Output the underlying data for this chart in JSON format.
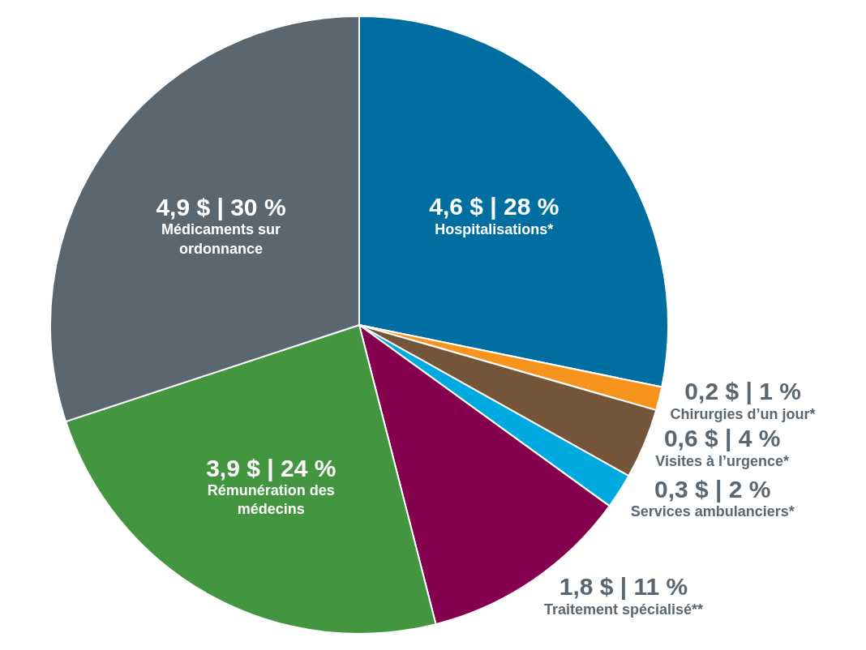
{
  "chart_data": {
    "type": "pie",
    "categories": [
      "Hospitalisations*",
      "Chirurgies d’un jour*",
      "Visites à l’urgence*",
      "Services ambulanciers*",
      "Traitement spécialisé**",
      "Rémunération des médecins",
      "Médicaments sur ordonnance"
    ],
    "values": [
      4.6,
      0.2,
      0.6,
      0.3,
      1.8,
      3.9,
      4.9
    ],
    "colors": [
      "#006ea0",
      "#f7941d",
      "#75553a",
      "#00a9e0",
      "#85004f",
      "#43963f",
      "#5b6770"
    ],
    "value_labels": [
      "4,6 $ | 28 %",
      "0,2 $ | 1 %",
      "0,6 $ | 4 %",
      "0,3 $ | 2 %",
      "1,8 $ | 11 %",
      "3,9 $ | 24 %",
      "4,9 $ | 30 %"
    ]
  }
}
